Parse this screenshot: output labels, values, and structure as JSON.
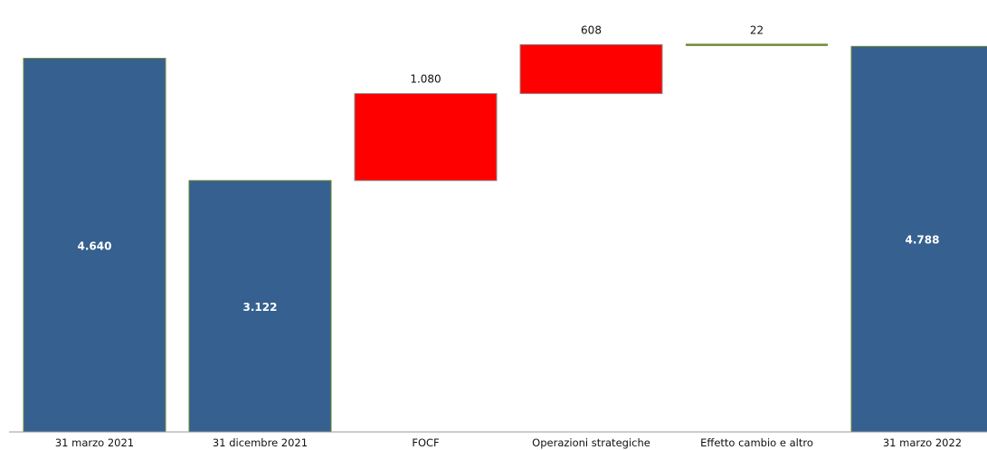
{
  "chart_data": {
    "type": "waterfall",
    "title": "",
    "xlabel": "",
    "ylabel": "",
    "ylim": [
      0,
      5050
    ],
    "grid": false,
    "legend": "none",
    "categories": [
      "31 marzo 2021",
      "31 dicembre 2021",
      "FOCF",
      "Operazioni strategiche",
      "Effetto cambio e altro",
      "31 marzo 2022"
    ],
    "bars": [
      {
        "category": "31 marzo 2021",
        "kind": "total",
        "start": 0,
        "end": 4640,
        "label": "4.640"
      },
      {
        "category": "31 dicembre 2021",
        "kind": "total",
        "start": 0,
        "end": 3122,
        "label": "3.122"
      },
      {
        "category": "FOCF",
        "kind": "delta",
        "start": 3122,
        "end": 4202,
        "label": "1.080"
      },
      {
        "category": "Operazioni strategiche",
        "kind": "delta",
        "start": 4202,
        "end": 4810,
        "label": "608"
      },
      {
        "category": "Effetto cambio e altro",
        "kind": "delta",
        "start": 4810,
        "end": 4788,
        "label": "22"
      },
      {
        "category": "31 marzo 2022",
        "kind": "total",
        "start": 0,
        "end": 4788,
        "label": "4.788"
      }
    ],
    "colors": {
      "total": "#35608F",
      "total_border": "#6E8A3A",
      "increase": "#FF0000",
      "small_delta": "#6E8A3A",
      "axis": "#999999",
      "label_inside": "#ffffff",
      "label_outside": "#111111"
    }
  }
}
